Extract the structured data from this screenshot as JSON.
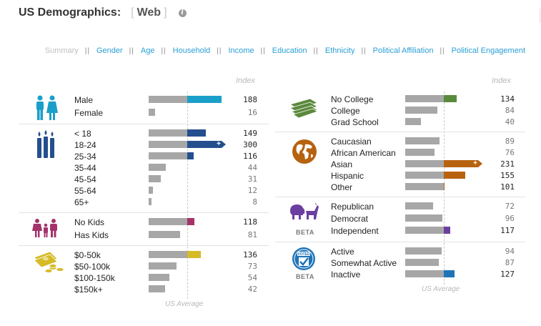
{
  "header": {
    "title": "US Demographics:",
    "bracket_open": "[",
    "subtitle": "Web",
    "bracket_close": "]"
  },
  "tabs": [
    {
      "label": "Summary",
      "active": true
    },
    {
      "label": "Gender"
    },
    {
      "label": "Age"
    },
    {
      "label": "Household"
    },
    {
      "label": "Income"
    },
    {
      "label": "Education"
    },
    {
      "label": "Ethnicity"
    },
    {
      "label": "Political Affiliation"
    },
    {
      "label": "Political Engagement"
    }
  ],
  "tab_separator": "||",
  "index_label": "Index",
  "us_average_label": "US Average",
  "beta_label": "BETA",
  "colors": {
    "gender": "#1a9fc9",
    "age": "#244f8e",
    "kids": "#a4336b",
    "income": "#d6ba26",
    "education": "#5a8a3c",
    "ethnicity": "#b7620f",
    "political": "#6b3fa0",
    "engagement": "#1f74b8",
    "baseline": "#a7a7a7"
  },
  "left_groups": [
    {
      "key": "gender",
      "icon": "male-female-icon",
      "rows": [
        {
          "label": "Male",
          "value": 188
        },
        {
          "label": "Female",
          "value": 16
        }
      ]
    },
    {
      "key": "age",
      "icon": "candles-icon",
      "rows": [
        {
          "label": "< 18",
          "value": 149
        },
        {
          "label": "18-24",
          "value": 300,
          "overflow": true
        },
        {
          "label": "25-34",
          "value": 116
        },
        {
          "label": "35-44",
          "value": 44
        },
        {
          "label": "45-54",
          "value": 31
        },
        {
          "label": "55-64",
          "value": 12
        },
        {
          "label": "65+",
          "value": 8
        }
      ]
    },
    {
      "key": "kids",
      "icon": "family-icon",
      "rows": [
        {
          "label": "No Kids",
          "value": 118
        },
        {
          "label": "Has Kids",
          "value": 81
        }
      ]
    },
    {
      "key": "income",
      "icon": "money-icon",
      "rows": [
        {
          "label": "$0-50k",
          "value": 136
        },
        {
          "label": "$50-100k",
          "value": 73
        },
        {
          "label": "$100-150k",
          "value": 54
        },
        {
          "label": "$150k+",
          "value": 42
        }
      ]
    }
  ],
  "right_groups": [
    {
      "key": "education",
      "icon": "books-icon",
      "rows": [
        {
          "label": "No College",
          "value": 134
        },
        {
          "label": "College",
          "value": 84
        },
        {
          "label": "Grad School",
          "value": 40
        }
      ]
    },
    {
      "key": "ethnicity",
      "icon": "globe-icon",
      "rows": [
        {
          "label": "Caucasian",
          "value": 89
        },
        {
          "label": "African American",
          "value": 76
        },
        {
          "label": "Asian",
          "value": 231,
          "overflow": true
        },
        {
          "label": "Hispanic",
          "value": 155
        },
        {
          "label": "Other",
          "value": 101
        }
      ]
    },
    {
      "key": "political",
      "icon": "elephant-donkey-icon",
      "beta": true,
      "rows": [
        {
          "label": "Republican",
          "value": 72
        },
        {
          "label": "Democrat",
          "value": 96
        },
        {
          "label": "Independent",
          "value": 117
        }
      ]
    },
    {
      "key": "engagement",
      "icon": "voted-badge-icon",
      "beta": true,
      "rows": [
        {
          "label": "Active",
          "value": 94
        },
        {
          "label": "Somewhat Active",
          "value": 87
        },
        {
          "label": "Inactive",
          "value": 127
        }
      ]
    }
  ],
  "voted_text": "VOTED"
}
